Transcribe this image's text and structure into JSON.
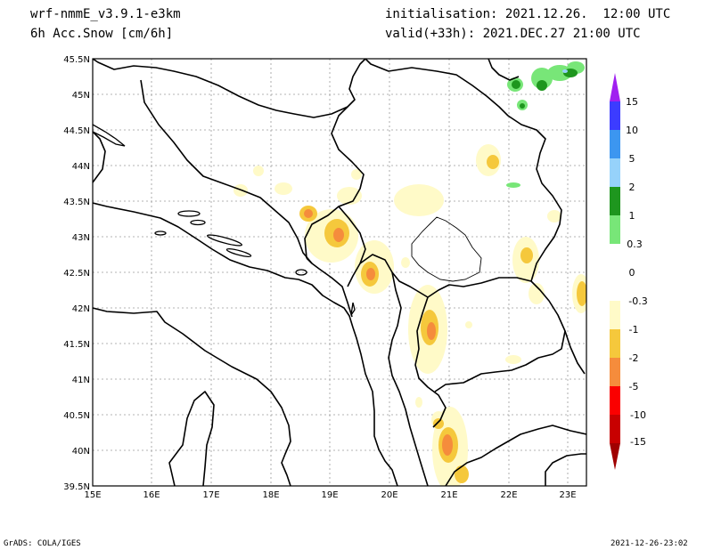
{
  "header": {
    "model": "wrf-nmmE_v3.9.1-e3km",
    "field": "6h Acc.Snow [cm/6h]",
    "init": "initialisation: 2021.12.26.  12:00 UTC",
    "valid": "valid(+33h): 2021.DEC.27 21:00 UTC"
  },
  "axes": {
    "lat_labels": [
      "45.5N",
      "45N",
      "44.5N",
      "44N",
      "43.5N",
      "43N",
      "42.5N",
      "42N",
      "41.5N",
      "41N",
      "40.5N",
      "40N",
      "39.5N"
    ],
    "lon_labels": [
      "15E",
      "16E",
      "17E",
      "18E",
      "19E",
      "20E",
      "21E",
      "22E",
      "23E"
    ]
  },
  "legend": {
    "labels": [
      "15",
      "10",
      "5",
      "2",
      "1",
      "0.3",
      "0",
      "-0.3",
      "-1",
      "-2",
      "-5",
      "-10",
      "-15"
    ],
    "colors": [
      "#a020f0",
      "#3c3cff",
      "#3c96f0",
      "#96d2fa",
      "#1e961e",
      "#78e678",
      "#ffffff",
      "#fffac8",
      "#f5c83c",
      "#f58c3c",
      "#fa0000",
      "#c80000",
      "#a00000"
    ]
  },
  "footer": {
    "left": "GrADS: COLA/IGES",
    "right": "2021-12-26-23:02"
  }
}
